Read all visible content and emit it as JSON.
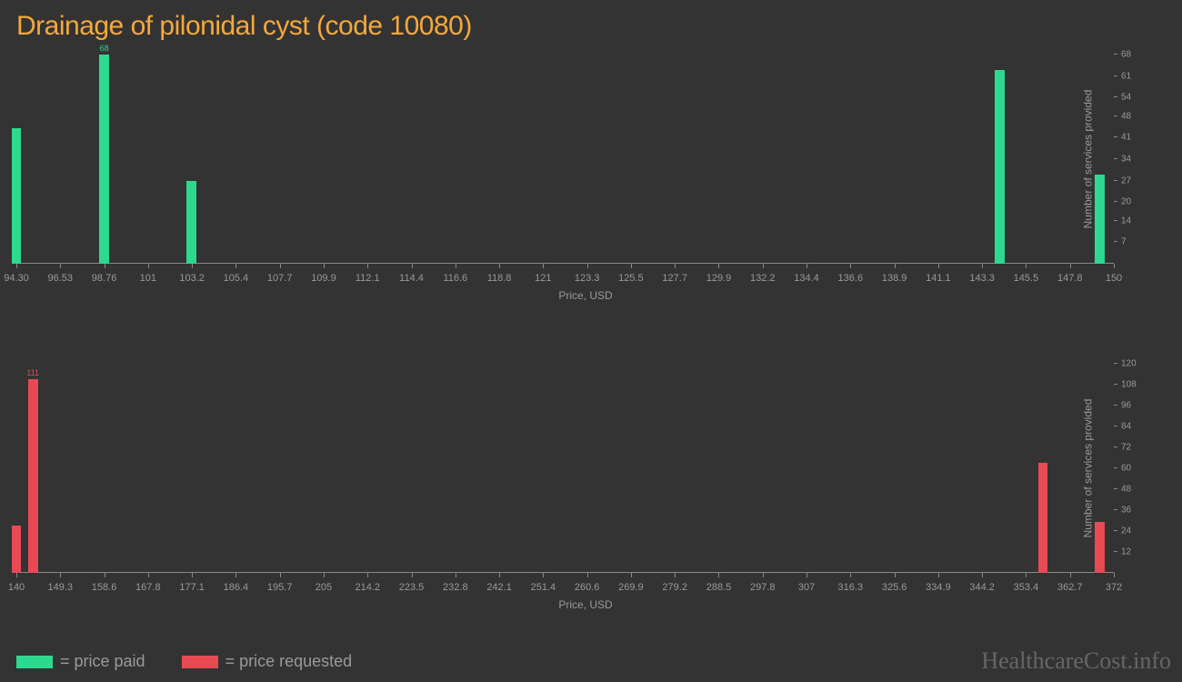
{
  "title": "Drainage of pilonidal cyst (code 10080)",
  "background_color": "#333333",
  "title_color": "#f4a83d",
  "axis_color": "#888888",
  "label_color": "#999999",
  "watermark_color": "#666666",
  "chart1": {
    "type": "bar",
    "color": "#2dd98f",
    "x_min": 94.3,
    "x_max": 150,
    "y_max": 68,
    "x_ticks": [
      "94.30",
      "96.53",
      "98.76",
      "101",
      "103.2",
      "105.4",
      "107.7",
      "109.9",
      "112.1",
      "114.4",
      "116.6",
      "118.8",
      "121",
      "123.3",
      "125.5",
      "127.7",
      "129.9",
      "132.2",
      "134.4",
      "136.6",
      "138.9",
      "141.1",
      "143.3",
      "145.5",
      "147.8",
      "150"
    ],
    "y_ticks": [
      7,
      14,
      20,
      27,
      34,
      41,
      48,
      54,
      61,
      68
    ],
    "x_title": "Price, USD",
    "y_title": "Number of services provided",
    "bar_width_pct": 1.0,
    "bars": [
      {
        "x": 94.3,
        "y": 44,
        "label": null
      },
      {
        "x": 98.76,
        "y": 68,
        "label": "68"
      },
      {
        "x": 103.2,
        "y": 27,
        "label": null
      },
      {
        "x": 144.2,
        "y": 63,
        "label": null
      },
      {
        "x": 149.3,
        "y": 29,
        "label": null
      }
    ]
  },
  "chart2": {
    "type": "bar",
    "color": "#e84a54",
    "x_min": 140,
    "x_max": 372,
    "y_max": 120,
    "x_ticks": [
      "140",
      "149.3",
      "158.6",
      "167.8",
      "177.1",
      "186.4",
      "195.7",
      "205",
      "214.2",
      "223.5",
      "232.8",
      "242.1",
      "251.4",
      "260.6",
      "269.9",
      "279.2",
      "288.5",
      "297.8",
      "307",
      "316.3",
      "325.6",
      "334.9",
      "344.2",
      "353.4",
      "362.7",
      "372"
    ],
    "y_ticks": [
      12,
      24,
      36,
      48,
      60,
      72,
      84,
      96,
      108,
      120
    ],
    "x_title": "Price, USD",
    "y_title": "Number of services provided",
    "bar_width_pct": 1.0,
    "bars": [
      {
        "x": 140,
        "y": 27,
        "label": null
      },
      {
        "x": 143.5,
        "y": 111,
        "label": "111"
      },
      {
        "x": 357,
        "y": 63,
        "label": null
      },
      {
        "x": 369,
        "y": 29,
        "label": null
      }
    ]
  },
  "legend": [
    {
      "color": "#2dd98f",
      "label": "= price paid"
    },
    {
      "color": "#e84a54",
      "label": "= price requested"
    }
  ],
  "watermark": "HealthcareCost.info"
}
